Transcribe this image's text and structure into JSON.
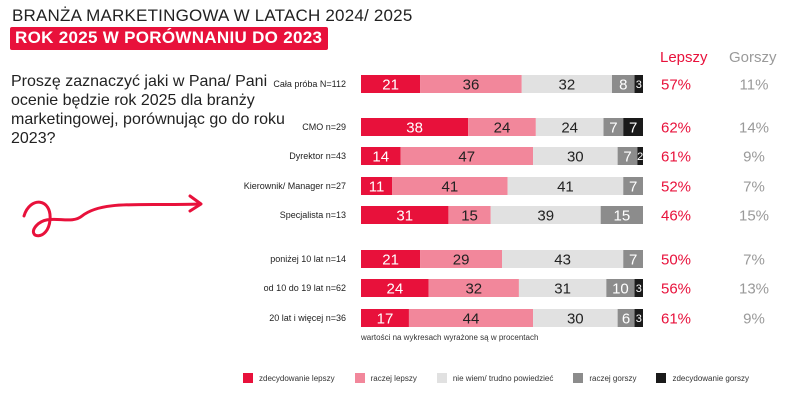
{
  "title": {
    "line1": "BRANŻA MARKETINGOWA W LATACH 2024/ 2025",
    "line2": "ROK 2025 W PORÓWNANIU DO 2023"
  },
  "question": "Proszę zaznaczyć jaki w Pana/ Pani ocenie będzie rok 2025 dla branży marketingowej, porównując go do roku 2023?",
  "headers": {
    "better": "Lepszy",
    "worse": "Gorszy"
  },
  "note": "wartości na wykresach wyrażone są w procentach",
  "legend": [
    {
      "label": "zdecydowanie lepszy",
      "color": "#e8113b"
    },
    {
      "label": "raczej lepszy",
      "color": "#f2879b"
    },
    {
      "label": "nie wiem/ trudno powiedzieć",
      "color": "#e1e1e1"
    },
    {
      "label": "raczej gorszy",
      "color": "#8c8c8c"
    },
    {
      "label": "zdecydowanie gorszy",
      "color": "#1a1a1a"
    }
  ],
  "chart_data": {
    "type": "bar",
    "orientation": "horizontal",
    "stacked": true,
    "unit": "%",
    "categories": [
      "Cała próba N=112",
      "CMO n=29",
      "Dyrektor n=43",
      "Kierownik/ Manager n=27",
      "Specjalista n=13",
      "poniżej 10 lat n=14",
      "od 10 do 19 lat n=62",
      "20 lat i więcej n=36"
    ],
    "series": [
      {
        "name": "zdecydowanie lepszy",
        "values": [
          21,
          38,
          14,
          11,
          31,
          21,
          24,
          17
        ]
      },
      {
        "name": "raczej lepszy",
        "values": [
          36,
          24,
          47,
          41,
          15,
          29,
          32,
          44
        ]
      },
      {
        "name": "nie wiem/ trudno powiedzieć",
        "values": [
          32,
          24,
          30,
          41,
          39,
          43,
          31,
          30
        ]
      },
      {
        "name": "raczej gorszy",
        "values": [
          8,
          7,
          7,
          7,
          15,
          7,
          10,
          6
        ]
      },
      {
        "name": "zdecydowanie gorszy",
        "values": [
          3,
          7,
          2,
          0,
          0,
          0,
          3,
          3
        ]
      }
    ],
    "better": [
      "57%",
      "62%",
      "61%",
      "52%",
      "46%",
      "50%",
      "56%",
      "61%"
    ],
    "worse": [
      "11%",
      "14%",
      "9%",
      "7%",
      "15%",
      "7%",
      "13%",
      "9%"
    ]
  }
}
